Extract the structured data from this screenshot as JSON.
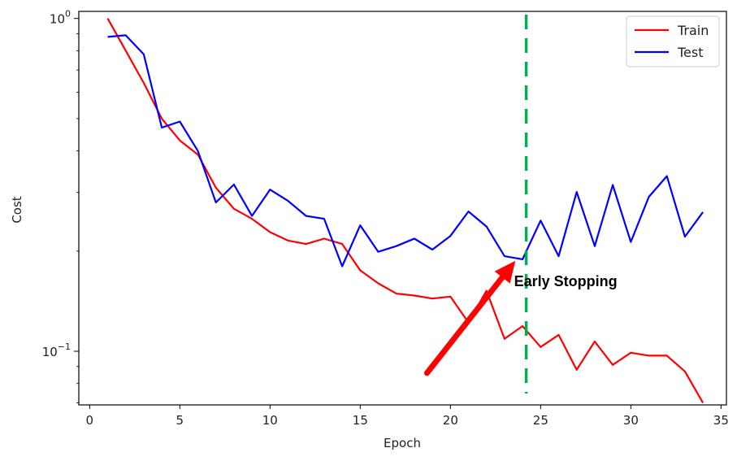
{
  "chart_data": {
    "type": "line",
    "xlabel": "Epoch",
    "ylabel": "Cost",
    "xlim": [
      -0.6,
      35.3
    ],
    "ylim": [
      0.069,
      1.05
    ],
    "yscale": "log",
    "xticks": [
      0,
      5,
      10,
      15,
      20,
      25,
      30,
      35
    ],
    "yticks": [
      {
        "value": 1.0,
        "base": "10",
        "exp": "0"
      },
      {
        "value": 0.1,
        "base": "10",
        "exp": "−1"
      }
    ],
    "grid": false,
    "legend_position": "top-right",
    "series": [
      {
        "name": "Train",
        "color": "#ff0000",
        "x": [
          1,
          2,
          3,
          4,
          5,
          6,
          7,
          8,
          9,
          10,
          11,
          12,
          13,
          14,
          15,
          16,
          17,
          18,
          19,
          20,
          21,
          22,
          23,
          24,
          25,
          26,
          27,
          28,
          29,
          30,
          31,
          32,
          33,
          34
        ],
        "y": [
          1.0,
          0.8,
          0.64,
          0.5,
          0.43,
          0.39,
          0.31,
          0.268,
          0.25,
          0.228,
          0.215,
          0.21,
          0.218,
          0.21,
          0.175,
          0.16,
          0.149,
          0.147,
          0.144,
          0.146,
          0.122,
          0.152,
          0.109,
          0.119,
          0.103,
          0.112,
          0.088,
          0.107,
          0.091,
          0.099,
          0.097,
          0.097,
          0.087,
          0.07
        ]
      },
      {
        "name": "Test",
        "color": "#0000ff",
        "x": [
          1,
          2,
          3,
          4,
          5,
          6,
          7,
          8,
          9,
          10,
          11,
          12,
          13,
          14,
          15,
          16,
          17,
          18,
          19,
          20,
          21,
          22,
          23,
          24,
          25,
          26,
          27,
          28,
          29,
          30,
          31,
          32,
          33,
          34
        ],
        "y": [
          0.88,
          0.89,
          0.78,
          0.47,
          0.49,
          0.4,
          0.28,
          0.317,
          0.255,
          0.306,
          0.283,
          0.255,
          0.25,
          0.18,
          0.239,
          0.199,
          0.207,
          0.218,
          0.202,
          0.222,
          0.263,
          0.237,
          0.193,
          0.189,
          0.247,
          0.193,
          0.301,
          0.207,
          0.316,
          0.213,
          0.291,
          0.336,
          0.221,
          0.262
        ]
      }
    ],
    "early_stop": {
      "x": 24.2,
      "color": "#00b050",
      "label": "Early Stopping",
      "arrow_color": "#ff0000",
      "arrow_from": [
        18.7,
        0.086
      ],
      "arrow_to": [
        23.6,
        0.187
      ]
    }
  }
}
